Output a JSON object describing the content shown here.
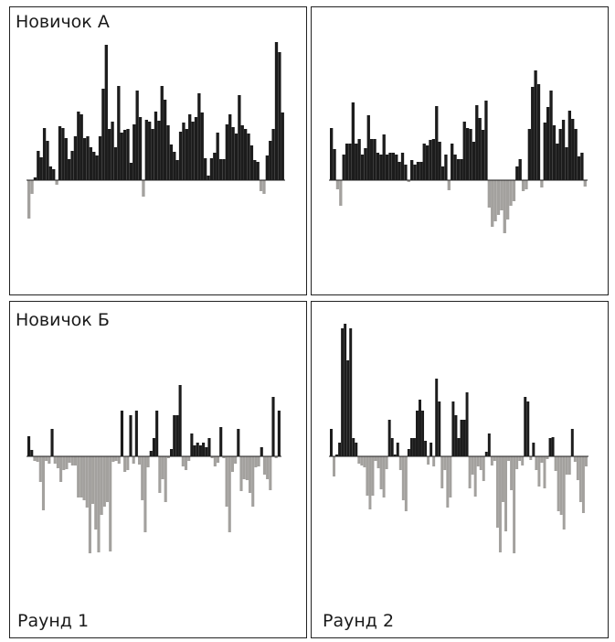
{
  "labels": {
    "row1": "Новичок А",
    "row2": "Новичок Б",
    "col1": "Раунд 1",
    "col2": "Раунд 2"
  },
  "colors": {
    "positive": "#1c1c1c",
    "negative": "#a3a19e",
    "frame": "#222222",
    "text": "#1a1a1a"
  },
  "chart_data": [
    {
      "type": "bar",
      "panel": "row1-col1",
      "values": [
        -42,
        -15,
        3,
        32,
        25,
        57,
        43,
        15,
        12,
        -5,
        59,
        57,
        46,
        23,
        32,
        48,
        75,
        72,
        46,
        48,
        36,
        31,
        27,
        48,
        100,
        148,
        56,
        64,
        36,
        103,
        52,
        55,
        56,
        19,
        61,
        98,
        69,
        -18,
        66,
        64,
        56,
        75,
        65,
        103,
        88,
        60,
        39,
        31,
        22,
        53,
        63,
        56,
        72,
        64,
        69,
        95,
        74,
        24,
        5,
        24,
        30,
        52,
        23,
        23,
        61,
        72,
        58,
        51,
        93,
        60,
        56,
        51,
        38,
        22,
        20,
        -12,
        -15,
        27,
        43,
        56,
        151,
        140,
        74
      ]
    },
    {
      "type": "bar",
      "panel": "row1-col2",
      "values": [
        57,
        34,
        -10,
        -28,
        28,
        40,
        40,
        85,
        40,
        45,
        28,
        35,
        71,
        45,
        45,
        30,
        28,
        50,
        28,
        30,
        30,
        28,
        20,
        30,
        17,
        -2,
        22,
        17,
        20,
        20,
        40,
        38,
        44,
        45,
        81,
        42,
        15,
        28,
        -11,
        40,
        28,
        23,
        23,
        64,
        57,
        56,
        42,
        82,
        68,
        55,
        87,
        -30,
        -51,
        -45,
        -38,
        -33,
        -58,
        -43,
        -28,
        -23,
        15,
        23,
        -12,
        -10,
        56,
        102,
        120,
        105,
        -8,
        63,
        80,
        98,
        60,
        40,
        56,
        66,
        36,
        76,
        67,
        56,
        26,
        30,
        -7
      ]
    },
    {
      "type": "bar",
      "panel": "row2-col1",
      "values": [
        22,
        7,
        -5,
        -6,
        -28,
        -59,
        -5,
        -8,
        30,
        -8,
        -13,
        -28,
        -15,
        -14,
        -7,
        -10,
        -10,
        -45,
        -45,
        -48,
        -56,
        -106,
        -52,
        -80,
        -105,
        -64,
        -55,
        -50,
        -104,
        -6,
        -5,
        -8,
        50,
        -17,
        -15,
        45,
        -8,
        50,
        -9,
        -48,
        -83,
        -12,
        6,
        20,
        50,
        -40,
        -25,
        -50,
        -2,
        8,
        45,
        45,
        78,
        -11,
        -15,
        -5,
        25,
        12,
        15,
        12,
        15,
        10,
        20,
        -2,
        -11,
        -7,
        32,
        -2,
        -55,
        -83,
        -17,
        -8,
        30,
        -38,
        -25,
        -26,
        -40,
        -55,
        -12,
        -11,
        10,
        -20,
        -25,
        -37,
        65,
        -2,
        50
      ]
    },
    {
      "type": "bar",
      "panel": "row2-col2",
      "values": [
        30,
        -22,
        2,
        15,
        140,
        145,
        105,
        140,
        20,
        15,
        -8,
        -10,
        -12,
        -43,
        -58,
        -43,
        -5,
        -13,
        -36,
        -45,
        -14,
        40,
        20,
        2,
        15,
        -15,
        -48,
        -60,
        8,
        20,
        20,
        50,
        62,
        50,
        17,
        -9,
        15,
        -11,
        85,
        60,
        -35,
        -15,
        -56,
        -45,
        60,
        45,
        20,
        40,
        40,
        70,
        -35,
        -20,
        -44,
        -11,
        -15,
        -27,
        5,
        25,
        -10,
        -5,
        -78,
        -105,
        -50,
        -82,
        -5,
        -37,
        -106,
        -14,
        -5,
        -10,
        65,
        60,
        -4,
        15,
        -15,
        -33,
        -7,
        -35,
        -3,
        20,
        21,
        -16,
        -60,
        -64,
        -80,
        -20,
        -20,
        30,
        -6,
        -26,
        -50,
        -62,
        -11
      ]
    }
  ]
}
